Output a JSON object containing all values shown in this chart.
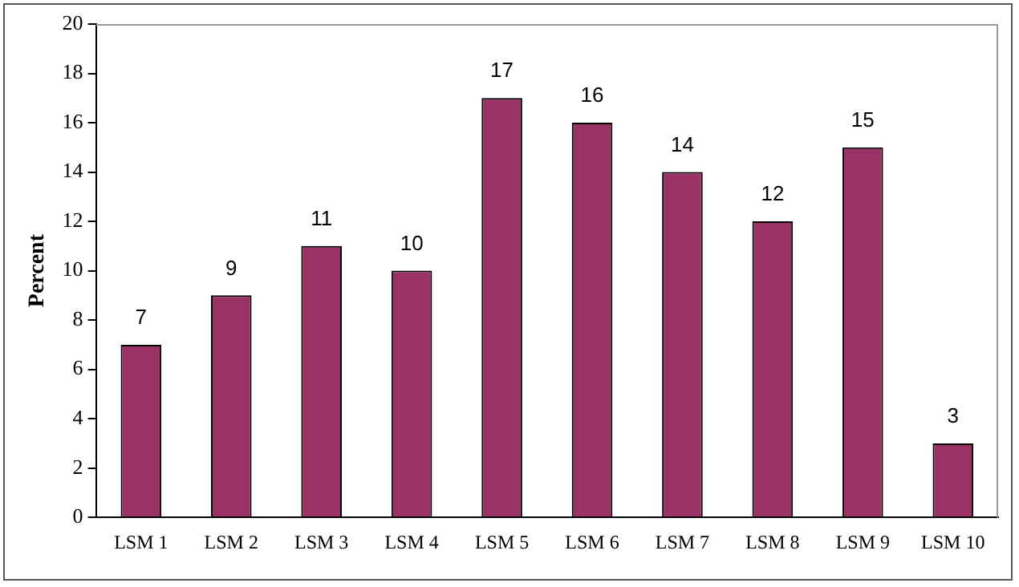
{
  "chart_data": {
    "type": "bar",
    "ylabel": "Percent",
    "categories": [
      "LSM 1",
      "LSM 2",
      "LSM 3",
      "LSM 4",
      "LSM 5",
      "LSM 6",
      "LSM 7",
      "LSM 8",
      "LSM 9",
      "LSM 10"
    ],
    "values": [
      7,
      9,
      11,
      10,
      17,
      16,
      14,
      12,
      15,
      3
    ],
    "color": "#993366",
    "ylim": [
      0,
      20
    ],
    "yticks": [
      0,
      2,
      4,
      6,
      8,
      10,
      12,
      14,
      16,
      18,
      20
    ],
    "data_labels": true
  }
}
